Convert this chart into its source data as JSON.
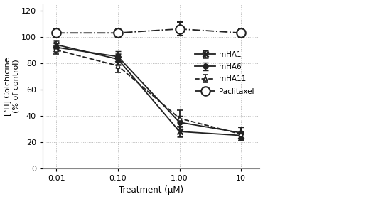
{
  "x": [
    0.01,
    0.1,
    1.0,
    10
  ],
  "mHA1": [
    94,
    83,
    28,
    25
  ],
  "mHA1_err": [
    3,
    4,
    4,
    3
  ],
  "mHA6": [
    92,
    85,
    35,
    27
  ],
  "mHA6_err": [
    3,
    4,
    5,
    4
  ],
  "mHA11": [
    90,
    78,
    38,
    26
  ],
  "mHA11_err": [
    3,
    5,
    6,
    5
  ],
  "Paclitaxel": [
    103,
    103,
    106,
    103
  ],
  "Paclitaxel_err": [
    3,
    3,
    5,
    3
  ],
  "xlabel": "Treatment (μM)",
  "ylabel": "[³H] Colchicine\n(% of control)",
  "ylim": [
    0,
    125
  ],
  "yticks": [
    0,
    20,
    40,
    60,
    80,
    100,
    120
  ],
  "color": "#222222",
  "bg_color": "#ffffff"
}
